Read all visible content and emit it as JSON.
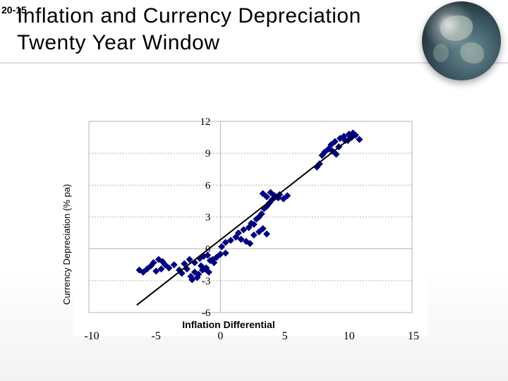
{
  "slide": {
    "number": "20-15",
    "title_line1": "Inflation and Currency Depreciation",
    "title_line2": "Twenty Year Window"
  },
  "colors": {
    "points": "#00007f",
    "fit_line": "#000000",
    "grid": "#b5b5b5"
  },
  "chart_data": {
    "type": "scatter",
    "xlabel": "Inflation Differential",
    "ylabel": "Currency Depreciation (% pa)",
    "xlim": [
      -10,
      15
    ],
    "ylim": [
      -6,
      12
    ],
    "x_ticks": [
      -10,
      -5,
      0,
      5,
      10,
      15
    ],
    "y_ticks": [
      12,
      9,
      6,
      3,
      0,
      -3,
      -6
    ],
    "grid": "horizontal dashed",
    "fit_line": {
      "x": [
        -6.5,
        10.3
      ],
      "y": [
        -5.3,
        10.6
      ]
    },
    "series": [
      {
        "x": [
          -6.3,
          -6.0,
          -5.7,
          -5.4,
          -5.0,
          -4.6,
          -4.3,
          -4.0,
          -4.5,
          -4.8,
          -5.2,
          -3.6,
          -3.2,
          -3.0,
          -2.6,
          -2.3,
          -2.0,
          -1.7,
          -1.4,
          -1.1,
          -0.8,
          -2.8,
          -2.4,
          -2.0,
          -1.6,
          -1.3,
          -1.0,
          -0.6,
          -0.3,
          0.0,
          0.4,
          -2.2,
          -1.8,
          -1.5,
          -1.2,
          -0.9,
          -0.5,
          0.1,
          0.4,
          0.8,
          1.2,
          1.6,
          2.0,
          2.3,
          2.6,
          1.4,
          1.8,
          2.2,
          2.6,
          3.0,
          3.3,
          3.6,
          2.4,
          2.8,
          3.0,
          3.2,
          3.4,
          3.6,
          3.8,
          4.0,
          4.3,
          4.6,
          4.9,
          5.2,
          3.3,
          3.6,
          3.9,
          4.2,
          4.5,
          7.5,
          7.7,
          7.9,
          8.1,
          8.4,
          8.7,
          9.0,
          9.2,
          8.6,
          8.9,
          9.3,
          9.6,
          9.9,
          10.2,
          10.5,
          10.8,
          10.0,
          10.3,
          10.1,
          9.7
        ],
        "y": [
          -2.0,
          -2.2,
          -1.9,
          -1.6,
          -2.1,
          -1.9,
          -1.5,
          -1.8,
          -1.2,
          -1.0,
          -1.3,
          -1.5,
          -2.0,
          -2.3,
          -1.9,
          -2.6,
          -2.2,
          -2.4,
          -2.0,
          -1.8,
          -1.1,
          -1.4,
          -1.0,
          -1.3,
          -0.9,
          -0.7,
          -0.6,
          -1.0,
          -0.8,
          -0.5,
          -0.4,
          -2.9,
          -2.7,
          -1.6,
          -1.9,
          -2.2,
          -1.3,
          0.2,
          0.6,
          0.8,
          1.1,
          0.9,
          0.7,
          0.5,
          1.3,
          1.5,
          1.8,
          2.0,
          2.3,
          1.6,
          1.9,
          1.4,
          2.4,
          2.8,
          3.0,
          3.3,
          3.8,
          4.0,
          4.3,
          4.6,
          4.9,
          5.1,
          4.7,
          5.0,
          5.2,
          4.9,
          5.3,
          5.0,
          4.8,
          7.7,
          8.0,
          8.8,
          9.1,
          9.4,
          9.2,
          8.9,
          9.6,
          9.8,
          10.1,
          10.4,
          10.6,
          10.2,
          10.5,
          10.7,
          10.3,
          10.8,
          10.9,
          10.6,
          10.2
        ]
      }
    ]
  }
}
